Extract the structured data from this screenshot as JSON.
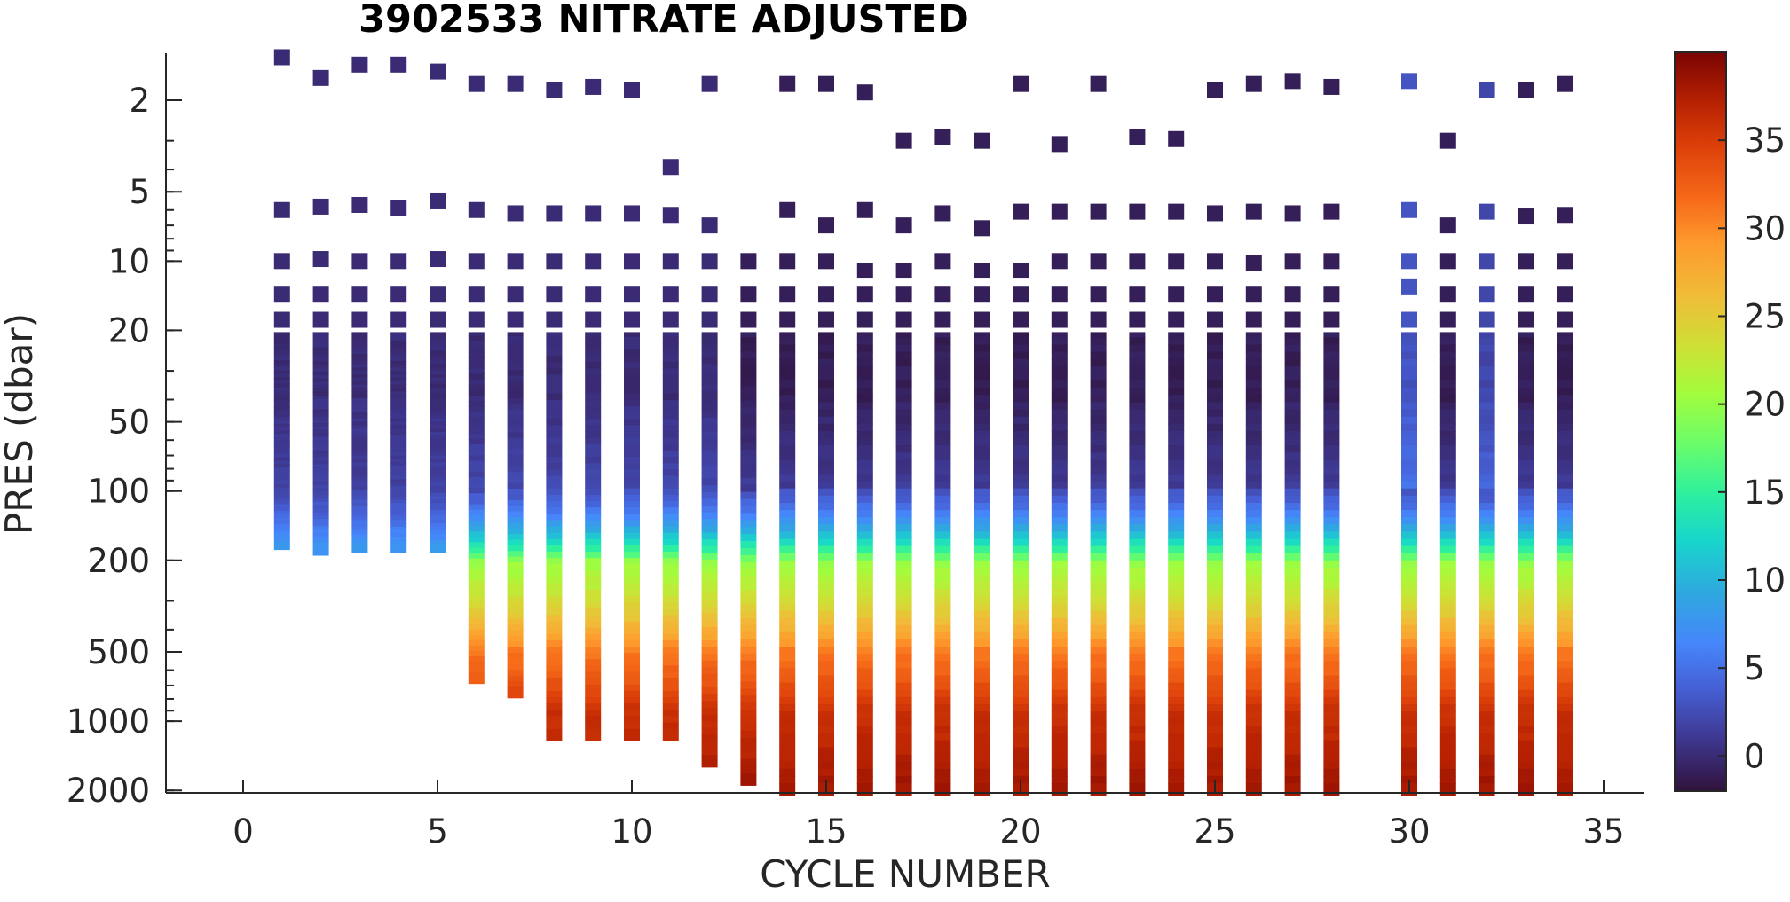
{
  "chart_data": {
    "type": "scatter",
    "title": "3902533  NITRATE ADJUSTED",
    "xlabel": "CYCLE NUMBER",
    "ylabel": "PRES (dbar)",
    "xlim": [
      -2,
      36.5
    ],
    "ylim": [
      2150,
      1.3
    ],
    "y_scale": "log",
    "y_reversed": true,
    "x_ticks": [
      0,
      5,
      10,
      15,
      20,
      25,
      30,
      35
    ],
    "y_ticks": [
      2,
      5,
      10,
      20,
      50,
      100,
      200,
      500,
      1000,
      2000
    ],
    "colorbar": {
      "colormap": "turbo",
      "range": [
        -2,
        40
      ],
      "ticks": [
        0,
        5,
        10,
        15,
        20,
        25,
        30,
        35
      ]
    },
    "grid": false,
    "cycles": [
      {
        "cycle": 1,
        "max_pres": 170,
        "deep": 8,
        "top": [
          1.3,
          6,
          10,
          14,
          18
        ],
        "top_vals": [
          0,
          0,
          0,
          0,
          0
        ]
      },
      {
        "cycle": 2,
        "max_pres": 180,
        "deep": 8,
        "top": [
          1.6,
          5.8,
          9.8,
          14,
          18
        ],
        "top_vals": [
          0,
          0,
          0,
          0,
          0
        ]
      },
      {
        "cycle": 3,
        "max_pres": 175,
        "deep": 8,
        "top": [
          1.4,
          5.7,
          10,
          14,
          18
        ],
        "top_vals": [
          0,
          0,
          0,
          0,
          0
        ]
      },
      {
        "cycle": 4,
        "max_pres": 175,
        "deep": 8,
        "top": [
          1.4,
          5.9,
          10,
          14,
          18
        ],
        "top_vals": [
          0,
          0,
          0,
          0,
          0
        ]
      },
      {
        "cycle": 5,
        "max_pres": 175,
        "deep": 8,
        "top": [
          1.5,
          5.5,
          9.8,
          14,
          18
        ],
        "top_vals": [
          0,
          0,
          0,
          0,
          0
        ]
      },
      {
        "cycle": 6,
        "max_pres": 650,
        "deep": 29,
        "top": [
          1.7,
          6,
          10,
          14,
          18
        ],
        "top_vals": [
          0,
          0,
          0,
          0,
          0
        ]
      },
      {
        "cycle": 7,
        "max_pres": 750,
        "deep": 30,
        "top": [
          1.7,
          6.2,
          10,
          14,
          18
        ],
        "top_vals": [
          0,
          0,
          0,
          0,
          0
        ]
      },
      {
        "cycle": 8,
        "max_pres": 1150,
        "deep": 37,
        "top": [
          1.8,
          6.2,
          10,
          14,
          18
        ],
        "top_vals": [
          0,
          0,
          0,
          0,
          0
        ]
      },
      {
        "cycle": 9,
        "max_pres": 1150,
        "deep": 37,
        "top": [
          1.75,
          6.2,
          10,
          14,
          18
        ],
        "top_vals": [
          0,
          0,
          0,
          0,
          0
        ]
      },
      {
        "cycle": 10,
        "max_pres": 1150,
        "deep": 37,
        "top": [
          1.8,
          6.2,
          10,
          14,
          18
        ],
        "top_vals": [
          0,
          0,
          0,
          0,
          0
        ]
      },
      {
        "cycle": 11,
        "max_pres": 1150,
        "deep": 37,
        "top": [
          3.9,
          6.3,
          10,
          14,
          18
        ],
        "top_vals": [
          0,
          0,
          0,
          0,
          0
        ]
      },
      {
        "cycle": 12,
        "max_pres": 1500,
        "deep": 38,
        "top": [
          1.7,
          7,
          10,
          14,
          18
        ],
        "top_vals": [
          0,
          0,
          0,
          0,
          0
        ]
      },
      {
        "cycle": 13,
        "max_pres": 1800,
        "deep": 38,
        "top": [
          10,
          14,
          18
        ],
        "top_vals": [
          -1,
          -1,
          -1
        ]
      },
      {
        "cycle": 14,
        "max_pres": 2000,
        "deep": 38,
        "top": [
          1.7,
          6,
          10,
          14,
          18
        ],
        "top_vals": [
          -1,
          -1,
          -1,
          -1,
          -1
        ]
      },
      {
        "cycle": 15,
        "max_pres": 2000,
        "deep": 38,
        "top": [
          1.7,
          7,
          10,
          14,
          18
        ],
        "top_vals": [
          -1,
          -1,
          -1,
          -1,
          -1
        ]
      },
      {
        "cycle": 16,
        "max_pres": 2000,
        "deep": 38,
        "top": [
          1.85,
          6,
          11,
          14,
          18
        ],
        "top_vals": [
          -1,
          -1,
          -1,
          -1,
          -1
        ]
      },
      {
        "cycle": 17,
        "max_pres": 2000,
        "deep": 38,
        "top": [
          3,
          7,
          11,
          14,
          18
        ],
        "top_vals": [
          -1,
          -1,
          -1,
          -1,
          -1
        ]
      },
      {
        "cycle": 18,
        "max_pres": 2000,
        "deep": 38,
        "top": [
          2.9,
          6.2,
          10,
          14,
          18
        ],
        "top_vals": [
          -1,
          -1,
          -1,
          -1,
          -1
        ]
      },
      {
        "cycle": 19,
        "max_pres": 2000,
        "deep": 38,
        "top": [
          3,
          7.2,
          11,
          14,
          18
        ],
        "top_vals": [
          -1,
          -1,
          -1,
          -1,
          -1
        ]
      },
      {
        "cycle": 20,
        "max_pres": 2000,
        "deep": 38,
        "top": [
          1.7,
          6.1,
          11,
          14,
          18
        ],
        "top_vals": [
          -1,
          -1,
          -1,
          -1,
          -1
        ]
      },
      {
        "cycle": 21,
        "max_pres": 2000,
        "deep": 38,
        "top": [
          3.1,
          6.1,
          10,
          14,
          18
        ],
        "top_vals": [
          -1,
          -1,
          -1,
          -1,
          -1
        ]
      },
      {
        "cycle": 22,
        "max_pres": 2000,
        "deep": 38,
        "top": [
          1.7,
          6.1,
          10,
          14,
          18
        ],
        "top_vals": [
          -1,
          -1,
          -1,
          -1,
          -1
        ]
      },
      {
        "cycle": 23,
        "max_pres": 2000,
        "deep": 38,
        "top": [
          2.9,
          6.1,
          10,
          14,
          18
        ],
        "top_vals": [
          -1,
          -1,
          -1,
          -1,
          -1
        ]
      },
      {
        "cycle": 24,
        "max_pres": 2000,
        "deep": 38,
        "top": [
          2.95,
          6.1,
          10,
          14,
          18
        ],
        "top_vals": [
          -1,
          -1,
          -1,
          -1,
          -1
        ]
      },
      {
        "cycle": 25,
        "max_pres": 2000,
        "deep": 38,
        "top": [
          1.8,
          6.2,
          10,
          14,
          18
        ],
        "top_vals": [
          -1,
          -1,
          -1,
          -1,
          -1
        ]
      },
      {
        "cycle": 26,
        "max_pres": 2000,
        "deep": 38,
        "top": [
          1.7,
          6.1,
          10.2,
          14,
          18
        ],
        "top_vals": [
          -1,
          -1,
          -1,
          -1,
          -1
        ]
      },
      {
        "cycle": 27,
        "max_pres": 2000,
        "deep": 38,
        "top": [
          1.65,
          6.2,
          10,
          14,
          18
        ],
        "top_vals": [
          -1,
          -1,
          -1,
          -1,
          -1
        ]
      },
      {
        "cycle": 28,
        "max_pres": 2000,
        "deep": 38,
        "top": [
          1.75,
          6.1,
          10,
          14,
          18
        ],
        "top_vals": [
          -1,
          -1,
          -1,
          -1,
          -1
        ]
      },
      {
        "cycle": 30,
        "max_pres": 2000,
        "deep": 38,
        "top": [
          1.65,
          6,
          10,
          13,
          18
        ],
        "top_vals": [
          3,
          3,
          3,
          3,
          3
        ]
      },
      {
        "cycle": 31,
        "max_pres": 2000,
        "deep": 38,
        "top": [
          3,
          7,
          10,
          14,
          18
        ],
        "top_vals": [
          -1,
          -1,
          -1,
          -1,
          -1
        ]
      },
      {
        "cycle": 32,
        "max_pres": 2000,
        "deep": 38,
        "top": [
          1.8,
          6.1,
          10,
          14,
          18
        ],
        "top_vals": [
          2,
          2,
          2,
          2,
          2
        ]
      },
      {
        "cycle": 33,
        "max_pres": 2000,
        "deep": 38,
        "top": [
          1.8,
          6.4,
          10,
          14,
          18
        ],
        "top_vals": [
          -1,
          -1,
          -1,
          -1,
          -1
        ]
      },
      {
        "cycle": 34,
        "max_pres": 2000,
        "deep": 38,
        "top": [
          1.7,
          6.3,
          10,
          14,
          18
        ],
        "top_vals": [
          -1,
          -1,
          -1,
          -1,
          -1
        ]
      }
    ]
  }
}
